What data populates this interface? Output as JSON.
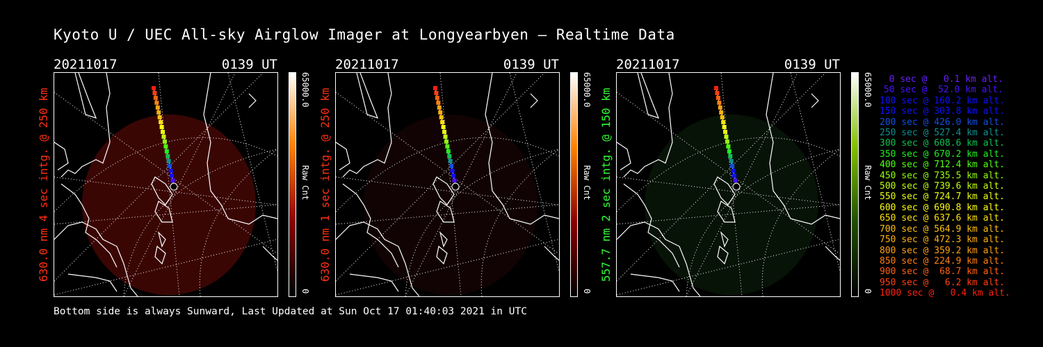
{
  "chart_data": {
    "type": "heatmap",
    "title": "Kyoto U / UEC All-sky Airglow Imager at Longyearbyen — Realtime Data",
    "footer": "Bottom side is always Sunward, Last Updated at Sun Oct 17 01:40:03 2021 in UTC",
    "panels": [
      {
        "date": "20211017",
        "time": "0139 UT",
        "ylabel": "630.0 nm 4 sec intg. @ 250 km",
        "ylabel_color": "#ff3010",
        "colorbar_max": "65000.0",
        "colorbar_min": "0",
        "colorbar_label": "Raw Cnt",
        "colormap": [
          "#000000",
          "#8b0000",
          "#ff8000",
          "#ffffff"
        ],
        "fill": "#3a0604"
      },
      {
        "date": "20211017",
        "time": "0139 UT",
        "ylabel": "630.0 nm 1 sec intg. @ 250 km",
        "ylabel_color": "#ff3010",
        "colorbar_max": "65000.0",
        "colorbar_min": "0",
        "colorbar_label": "Raw Cnt",
        "colormap": [
          "#000000",
          "#8b0000",
          "#ff8000",
          "#ffffff"
        ],
        "fill": "#110303"
      },
      {
        "date": "20211017",
        "time": "0139 UT",
        "ylabel": "557.7 nm 2 sec intg. @ 150 km",
        "ylabel_color": "#30ff30",
        "colorbar_max": "65000.0",
        "colorbar_min": "0",
        "colorbar_label": "Raw Cnt",
        "colormap": [
          "#000000",
          "#1f4f00",
          "#80c000",
          "#ffffff"
        ],
        "fill": "#061306"
      }
    ],
    "trajectory_legend": [
      {
        "label": "0 sec @   0.1 km alt.",
        "color": "#6a20ff"
      },
      {
        "label": "50 sec @  52.0 km alt.",
        "color": "#4a10ff"
      },
      {
        "label": "100 sec @ 160.2 km alt.",
        "color": "#1010ff"
      },
      {
        "label": "150 sec @ 303.8 km alt.",
        "color": "#1010ff"
      },
      {
        "label": "200 sec @ 426.0 km alt.",
        "color": "#1050e0"
      },
      {
        "label": "250 sec @ 527.4 km alt.",
        "color": "#109090"
      },
      {
        "label": "300 sec @ 608.6 km alt.",
        "color": "#10c050"
      },
      {
        "label": "350 sec @ 670.2 km alt.",
        "color": "#20f020"
      },
      {
        "label": "400 sec @ 712.4 km alt.",
        "color": "#50ff10"
      },
      {
        "label": "450 sec @ 735.5 km alt.",
        "color": "#90ff10"
      },
      {
        "label": "500 sec @ 739.6 km alt.",
        "color": "#c0ff10"
      },
      {
        "label": "550 sec @ 724.7 km alt.",
        "color": "#e8ff10"
      },
      {
        "label": "600 sec @ 690.8 km alt.",
        "color": "#ffff10"
      },
      {
        "label": "650 sec @ 637.6 km alt.",
        "color": "#ffe010"
      },
      {
        "label": "700 sec @ 564.9 km alt.",
        "color": "#ffc010"
      },
      {
        "label": "750 sec @ 472.3 km alt.",
        "color": "#ffb010"
      },
      {
        "label": "800 sec @ 359.2 km alt.",
        "color": "#ffa010"
      },
      {
        "label": "850 sec @ 224.9 km alt.",
        "color": "#ff8010"
      },
      {
        "label": "900 sec @  68.7 km alt.",
        "color": "#ff6010"
      },
      {
        "label": "950 sec @   6.2 km alt.",
        "color": "#ff4010"
      },
      {
        "label": "1000 sec @   0.4 km alt.",
        "color": "#ff2010"
      }
    ]
  }
}
